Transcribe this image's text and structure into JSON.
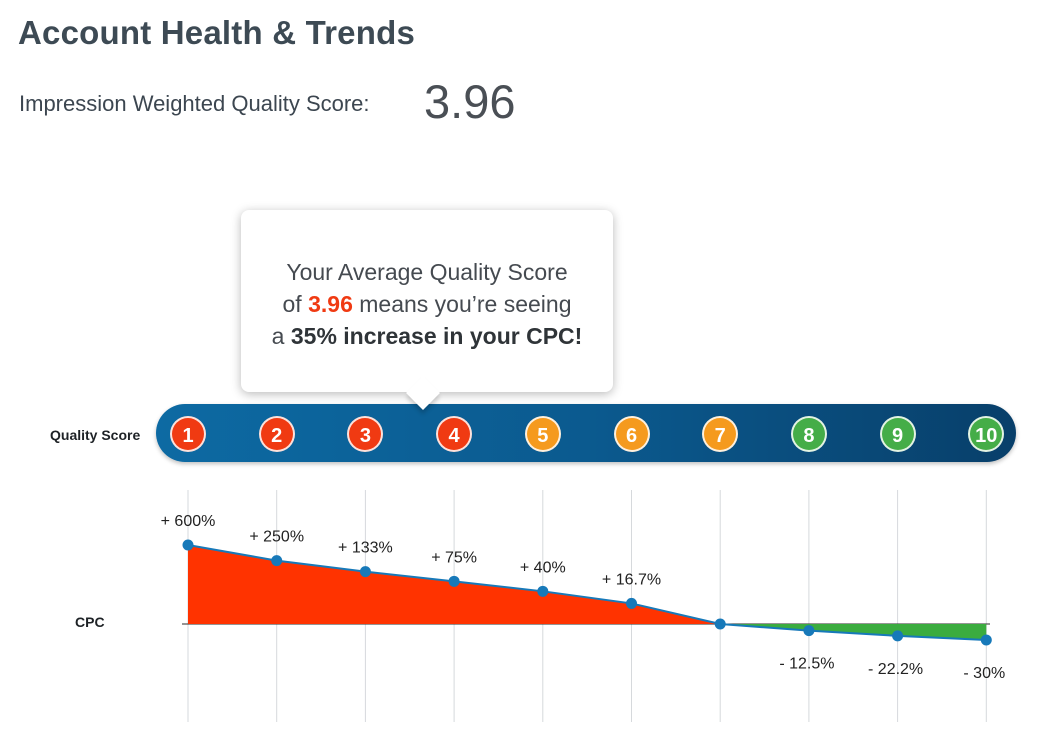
{
  "header": {
    "title": "Account Health & Trends",
    "score_label": "Impression Weighted Quality Score:",
    "score_value": "3.96"
  },
  "tooltip": {
    "line1": "Your Average Quality Score",
    "line2_prefix": "of ",
    "line2_score": "3.96",
    "line2_suffix": " means you’re seeing",
    "line3_prefix": "a ",
    "line3_bold": "35% increase in your CPC!"
  },
  "row_labels": {
    "quality_score": "Quality Score",
    "cpc": "CPC"
  },
  "colors": {
    "red": "#f03a12",
    "orange": "#f59a1e",
    "green": "#45ad48",
    "bar_blue": "#0b5a8f",
    "line_blue": "#1779b9",
    "area_red": "#ff3300",
    "area_green": "#3bac3f"
  },
  "chart_data": {
    "type": "area",
    "title": "",
    "xlabel": "Quality Score",
    "ylabel": "CPC",
    "categories": [
      "1",
      "2",
      "3",
      "4",
      "5",
      "6",
      "7",
      "8",
      "9",
      "10"
    ],
    "badge_colors": [
      "red",
      "red",
      "red",
      "red",
      "orange",
      "orange",
      "orange",
      "green",
      "green",
      "green"
    ],
    "series": [
      {
        "name": "CPC",
        "values": [
          600,
          250,
          133,
          75,
          40,
          16.7,
          0,
          -12.5,
          -22.2,
          -30
        ],
        "labels": [
          "+ 600%",
          "+ 250%",
          "+ 133%",
          "+ 75%",
          "+ 40%",
          "+ 16.7%",
          "",
          "- 12.5%",
          "- 22.2%",
          "- 30%"
        ]
      }
    ],
    "grid": true,
    "legend": "none"
  }
}
